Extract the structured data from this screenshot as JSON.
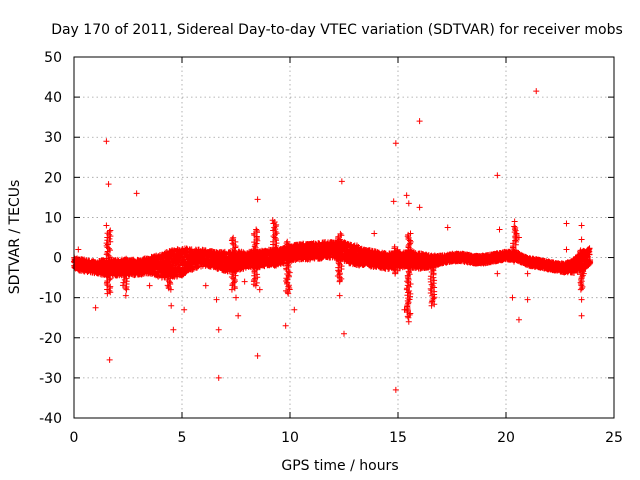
{
  "chart_data": {
    "type": "scatter",
    "title": "Day 170 of 2011, Sidereal Day-to-day VTEC variation (SDTVAR) for receiver mobs",
    "xlabel": "GPS time / hours",
    "ylabel": "SDTVAR / TECUs",
    "xlim": [
      0,
      25
    ],
    "ylim": [
      -40,
      50
    ],
    "xticks": [
      0,
      5,
      10,
      15,
      20,
      25
    ],
    "yticks": [
      -40,
      -30,
      -20,
      -10,
      0,
      10,
      20,
      30,
      40,
      50
    ],
    "grid": true,
    "marker": "+",
    "color": "#ff0000",
    "band": {
      "description": "dense cluster of points across the day",
      "x": [
        0,
        0.5,
        1.0,
        1.5,
        2.0,
        2.5,
        3.0,
        3.5,
        4.0,
        4.5,
        5.0,
        5.5,
        6.0,
        6.5,
        7.0,
        7.5,
        8.0,
        8.5,
        9.0,
        9.5,
        10.0,
        10.5,
        11.0,
        11.5,
        12.0,
        12.5,
        13.0,
        13.5,
        14.0,
        14.5,
        15.0,
        15.5,
        16.0,
        16.5,
        17.0,
        17.5,
        18.0,
        18.5,
        19.0,
        19.5,
        20.0,
        20.5,
        21.0,
        21.5,
        22.0,
        22.5,
        23.0,
        23.5,
        23.9
      ],
      "center": [
        -1.5,
        -2.0,
        -2.5,
        -2.5,
        -2.5,
        -2.5,
        -2.3,
        -2.0,
        -2.0,
        -1.5,
        -1.0,
        -0.5,
        0.0,
        -0.5,
        -1.0,
        -1.0,
        -0.5,
        -0.5,
        0.0,
        0.0,
        1.0,
        1.5,
        1.5,
        1.8,
        2.0,
        1.5,
        0.5,
        0.0,
        -0.5,
        -1.0,
        -0.5,
        -0.5,
        -0.8,
        -1.0,
        -0.5,
        0.0,
        0.0,
        -0.5,
        -0.5,
        0.0,
        0.5,
        0.3,
        -1.0,
        -1.5,
        -2.0,
        -2.5,
        -2.5,
        -1.0,
        0.5
      ],
      "spread": [
        1.5,
        1.5,
        1.5,
        2.0,
        2.0,
        2.0,
        2.0,
        2.0,
        3.0,
        3.5,
        3.5,
        2.5,
        2.0,
        2.0,
        2.5,
        2.5,
        2.0,
        2.0,
        2.0,
        2.0,
        2.0,
        2.0,
        2.0,
        2.0,
        2.0,
        2.5,
        2.5,
        2.0,
        2.0,
        2.0,
        2.0,
        2.0,
        2.0,
        1.5,
        1.0,
        1.0,
        1.0,
        1.0,
        1.0,
        1.0,
        1.0,
        1.0,
        1.0,
        1.0,
        1.0,
        1.0,
        1.5,
        2.5,
        2.0
      ]
    },
    "spikes": [
      {
        "x": 1.6,
        "y_from": -9,
        "y_to": 7
      },
      {
        "x": 2.35,
        "y_from": -8,
        "y_to": 0
      },
      {
        "x": 4.4,
        "y_from": -8,
        "y_to": 1
      },
      {
        "x": 7.4,
        "y_from": -8,
        "y_to": 5
      },
      {
        "x": 8.4,
        "y_from": -7,
        "y_to": 7
      },
      {
        "x": 9.3,
        "y_from": -2,
        "y_to": 9
      },
      {
        "x": 9.9,
        "y_from": -9,
        "y_to": 4
      },
      {
        "x": 12.3,
        "y_from": -6,
        "y_to": 6
      },
      {
        "x": 14.9,
        "y_from": -4,
        "y_to": 3
      },
      {
        "x": 15.5,
        "y_from": -15,
        "y_to": 6
      },
      {
        "x": 16.6,
        "y_from": -12,
        "y_to": -2
      },
      {
        "x": 20.4,
        "y_from": -1,
        "y_to": 8
      },
      {
        "x": 23.5,
        "y_from": -8,
        "y_to": 2
      }
    ],
    "outliers": [
      {
        "x": 1.5,
        "y": 29
      },
      {
        "x": 1.6,
        "y": 18.3
      },
      {
        "x": 1.65,
        "y": -25.5
      },
      {
        "x": 0.2,
        "y": 2
      },
      {
        "x": 1.0,
        "y": -12.5
      },
      {
        "x": 1.5,
        "y": 8
      },
      {
        "x": 2.9,
        "y": 16
      },
      {
        "x": 2.4,
        "y": -9.5
      },
      {
        "x": 3.5,
        "y": -7
      },
      {
        "x": 4.5,
        "y": -12
      },
      {
        "x": 4.6,
        "y": -18
      },
      {
        "x": 5.1,
        "y": -13
      },
      {
        "x": 6.1,
        "y": -7
      },
      {
        "x": 6.6,
        "y": -10.5
      },
      {
        "x": 6.7,
        "y": -18
      },
      {
        "x": 6.7,
        "y": -30
      },
      {
        "x": 7.5,
        "y": -10
      },
      {
        "x": 7.6,
        "y": -14.5
      },
      {
        "x": 7.9,
        "y": -6
      },
      {
        "x": 8.5,
        "y": 14.5
      },
      {
        "x": 8.5,
        "y": -24.5
      },
      {
        "x": 8.6,
        "y": -8
      },
      {
        "x": 9.2,
        "y": 9.3
      },
      {
        "x": 9.8,
        "y": -17
      },
      {
        "x": 10.2,
        "y": -13
      },
      {
        "x": 10.8,
        "y": 3
      },
      {
        "x": 12.4,
        "y": 19
      },
      {
        "x": 12.5,
        "y": -19
      },
      {
        "x": 12.3,
        "y": -9.5
      },
      {
        "x": 13.1,
        "y": 3
      },
      {
        "x": 13.9,
        "y": 6
      },
      {
        "x": 14.9,
        "y": 28.5
      },
      {
        "x": 14.9,
        "y": -33
      },
      {
        "x": 14.8,
        "y": 14
      },
      {
        "x": 15.4,
        "y": 15.5
      },
      {
        "x": 15.5,
        "y": 13.5
      },
      {
        "x": 15.3,
        "y": -13
      },
      {
        "x": 15.5,
        "y": -16
      },
      {
        "x": 16.0,
        "y": 34
      },
      {
        "x": 16.0,
        "y": 12.5
      },
      {
        "x": 17.3,
        "y": 7.5
      },
      {
        "x": 19.6,
        "y": 20.5
      },
      {
        "x": 19.7,
        "y": 7
      },
      {
        "x": 19.6,
        "y": -4
      },
      {
        "x": 20.3,
        "y": -10
      },
      {
        "x": 20.4,
        "y": 9
      },
      {
        "x": 20.6,
        "y": -15.5
      },
      {
        "x": 20.6,
        "y": 5
      },
      {
        "x": 21.0,
        "y": -10.5
      },
      {
        "x": 21.0,
        "y": -4
      },
      {
        "x": 21.4,
        "y": 41.5
      },
      {
        "x": 22.8,
        "y": 8.5
      },
      {
        "x": 22.8,
        "y": 2
      },
      {
        "x": 23.5,
        "y": 8
      },
      {
        "x": 23.5,
        "y": 4.5
      },
      {
        "x": 23.5,
        "y": -10.5
      },
      {
        "x": 23.5,
        "y": -14.5
      },
      {
        "x": 23.6,
        "y": -4
      }
    ]
  }
}
